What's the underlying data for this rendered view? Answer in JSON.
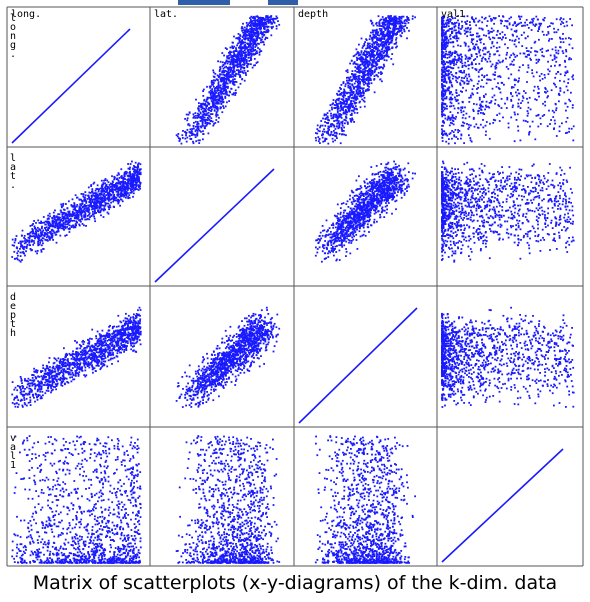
{
  "caption": "Matrix of scatterplots (x-y-diagrams) of the k-dim. data",
  "chart_data": {
    "type": "scatter",
    "layout": "scatterplot-matrix",
    "variables": [
      "long.",
      "lat.",
      "depth",
      "val1"
    ],
    "column_labels": [
      "long.",
      "lat.",
      "depth",
      "val1"
    ],
    "row_labels": [
      "long.",
      "lat.",
      "depth",
      "val1"
    ],
    "point_color": "#1a1aff",
    "grid": false
  }
}
